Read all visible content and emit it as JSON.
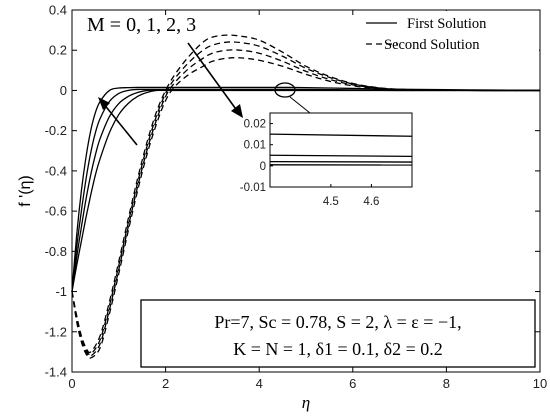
{
  "chart_data": {
    "type": "line",
    "xlabel": "η",
    "ylabel": "f '(η)",
    "xlim": [
      0,
      10
    ],
    "ylim": [
      -1.4,
      0.4
    ],
    "xticks": [
      "0",
      "2",
      "4",
      "6",
      "8",
      "10"
    ],
    "yticks": [
      "0.4",
      "0.2",
      "0",
      "-0.2",
      "-0.4",
      "-0.6",
      "-0.8",
      "-1",
      "-1.2",
      "-1.4"
    ],
    "legend": {
      "placement": "top-right",
      "entries": [
        {
          "label": "First Solution",
          "style": "solid"
        },
        {
          "label": "Second Solution",
          "style": "dashed"
        }
      ]
    },
    "annotations": {
      "parameter_text": "M = 0, 1, 2, 3",
      "condition_line1": "Pr=7, Sc = 0.78, S = 2, λ = ε = −1,",
      "condition_line2": "K = N = 1, δ1 = 0.1, δ2 = 0.2"
    },
    "first_solution": [
      {
        "name": "",
        "x": [
          0,
          0.1,
          0.2,
          0.3,
          0.4,
          0.5,
          0.6,
          0.8,
          1.0,
          1.2,
          1.4,
          1.6,
          1.8,
          2.0,
          2.2,
          2.5,
          3.0,
          3.5,
          4.0,
          4.5,
          5.0,
          6.0,
          7.0,
          8.0,
          9.0,
          10.0
        ],
        "y": [
          -1.0,
          -0.72,
          -0.5,
          -0.33,
          -0.2,
          -0.11,
          -0.055,
          0.0,
          0.012,
          0.014,
          0.015,
          0.015,
          0.015,
          0.015,
          0.015,
          0.015,
          0.015,
          0.015,
          0.015,
          0.015,
          0.014,
          0.01,
          0.006,
          0.004,
          0.002,
          0.0
        ]
      },
      {
        "name": "",
        "x": [
          0,
          0.1,
          0.2,
          0.3,
          0.4,
          0.5,
          0.6,
          0.8,
          1.0,
          1.2,
          1.4,
          1.6,
          1.8,
          2.0,
          2.2,
          2.5,
          3.0,
          3.5,
          4.0,
          4.5,
          5.0,
          6.0,
          7.0,
          8.0,
          9.0,
          10.0
        ],
        "y": [
          -1.0,
          -0.78,
          -0.6,
          -0.44,
          -0.31,
          -0.21,
          -0.14,
          -0.055,
          -0.015,
          0.0,
          0.005,
          0.005,
          0.005,
          0.005,
          0.005,
          0.005,
          0.005,
          0.005,
          0.005,
          0.005,
          0.005,
          0.003,
          0.002,
          0.001,
          0.0,
          0.0
        ]
      },
      {
        "name": "",
        "x": [
          0,
          0.1,
          0.2,
          0.3,
          0.4,
          0.5,
          0.6,
          0.8,
          1.0,
          1.2,
          1.4,
          1.6,
          1.8,
          2.0,
          2.2,
          2.5,
          3.0,
          3.5,
          4.0,
          4.5,
          5.0,
          6.0,
          7.0,
          8.0,
          9.0,
          10.0
        ],
        "y": [
          -1.0,
          -0.83,
          -0.68,
          -0.54,
          -0.42,
          -0.32,
          -0.24,
          -0.13,
          -0.065,
          -0.03,
          -0.01,
          0.0,
          0.002,
          0.002,
          0.002,
          0.002,
          0.002,
          0.002,
          0.002,
          0.002,
          0.002,
          0.001,
          0.0,
          0.0,
          0.0,
          0.0
        ]
      },
      {
        "name": "",
        "x": [
          0,
          0.1,
          0.2,
          0.3,
          0.4,
          0.5,
          0.6,
          0.8,
          1.0,
          1.2,
          1.4,
          1.6,
          1.8,
          2.0,
          2.2,
          2.5,
          3.0,
          3.5,
          4.0,
          4.5,
          5.0,
          6.0,
          7.0,
          8.0,
          9.0,
          10.0
        ],
        "y": [
          -1.0,
          -0.87,
          -0.75,
          -0.63,
          -0.52,
          -0.42,
          -0.34,
          -0.21,
          -0.12,
          -0.065,
          -0.03,
          -0.01,
          0.0,
          0.0,
          0.0,
          0.0,
          0.0,
          0.0,
          0.0,
          0.0,
          0.0,
          0.0,
          0.0,
          0.0,
          0.0,
          0.0
        ]
      }
    ],
    "second_solution": [
      {
        "name": "",
        "x": [
          0,
          0.1,
          0.2,
          0.3,
          0.4,
          0.6,
          0.8,
          1.0,
          1.2,
          1.4,
          1.6,
          1.8,
          2.0,
          2.2,
          2.5,
          2.8,
          3.0,
          3.3,
          3.6,
          4.0,
          4.5,
          5.0,
          5.5,
          6.0,
          6.5,
          7.0,
          8.0,
          9.0,
          10.0
        ],
        "y": [
          -1.0,
          -1.12,
          -1.22,
          -1.28,
          -1.3,
          -1.22,
          -1.05,
          -0.85,
          -0.64,
          -0.44,
          -0.26,
          -0.11,
          0.0,
          0.08,
          0.17,
          0.24,
          0.265,
          0.275,
          0.27,
          0.25,
          0.19,
          0.12,
          0.07,
          0.035,
          0.015,
          0.006,
          0.001,
          0.0,
          0.0
        ]
      },
      {
        "name": "",
        "x": [
          0,
          0.1,
          0.2,
          0.3,
          0.4,
          0.6,
          0.8,
          1.0,
          1.2,
          1.4,
          1.6,
          1.8,
          2.0,
          2.2,
          2.5,
          2.8,
          3.0,
          3.3,
          3.6,
          4.0,
          4.5,
          5.0,
          5.5,
          6.0,
          6.5,
          7.0,
          8.0,
          9.0,
          10.0
        ],
        "y": [
          -1.0,
          -1.13,
          -1.23,
          -1.29,
          -1.31,
          -1.24,
          -1.07,
          -0.87,
          -0.66,
          -0.46,
          -0.28,
          -0.13,
          -0.015,
          0.06,
          0.14,
          0.2,
          0.225,
          0.24,
          0.238,
          0.22,
          0.17,
          0.11,
          0.065,
          0.032,
          0.014,
          0.005,
          0.001,
          0.0,
          0.0
        ]
      },
      {
        "name": "",
        "x": [
          0,
          0.1,
          0.2,
          0.3,
          0.4,
          0.6,
          0.8,
          1.0,
          1.2,
          1.4,
          1.6,
          1.8,
          2.0,
          2.2,
          2.5,
          2.8,
          3.0,
          3.3,
          3.6,
          4.0,
          4.5,
          5.0,
          5.5,
          6.0,
          6.5,
          7.0,
          8.0,
          9.0,
          10.0
        ],
        "y": [
          -1.0,
          -1.14,
          -1.24,
          -1.3,
          -1.32,
          -1.26,
          -1.09,
          -0.89,
          -0.68,
          -0.48,
          -0.3,
          -0.15,
          -0.03,
          0.04,
          0.11,
          0.16,
          0.185,
          0.2,
          0.2,
          0.185,
          0.145,
          0.095,
          0.055,
          0.028,
          0.012,
          0.004,
          0.001,
          0.0,
          0.0
        ]
      },
      {
        "name": "",
        "x": [
          0,
          0.1,
          0.2,
          0.3,
          0.4,
          0.6,
          0.8,
          1.0,
          1.2,
          1.4,
          1.6,
          1.8,
          2.0,
          2.2,
          2.5,
          2.8,
          3.0,
          3.3,
          3.6,
          4.0,
          4.5,
          5.0,
          5.5,
          6.0,
          6.5,
          7.0,
          8.0,
          9.0,
          10.0
        ],
        "y": [
          -1.0,
          -1.15,
          -1.25,
          -1.31,
          -1.33,
          -1.28,
          -1.11,
          -0.91,
          -0.7,
          -0.5,
          -0.32,
          -0.17,
          -0.05,
          0.02,
          0.08,
          0.12,
          0.145,
          0.16,
          0.162,
          0.15,
          0.12,
          0.08,
          0.046,
          0.023,
          0.01,
          0.004,
          0.001,
          0.0,
          0.0
        ]
      }
    ],
    "inset": {
      "xlim": [
        4.35,
        4.7
      ],
      "ylim": [
        -0.01,
        0.025
      ],
      "xticks": [
        "4.5",
        "4.6"
      ],
      "yticks": [
        "0.02",
        "0.01",
        "0",
        "-0.01"
      ],
      "series": [
        {
          "name": "",
          "y": [
            0.015,
            0.014
          ]
        },
        {
          "name": "",
          "y": [
            0.005,
            0.0045
          ]
        },
        {
          "name": "",
          "y": [
            0.002,
            0.0018
          ]
        },
        {
          "name": "",
          "y": [
            0.0005,
            0.0004
          ]
        }
      ]
    }
  }
}
